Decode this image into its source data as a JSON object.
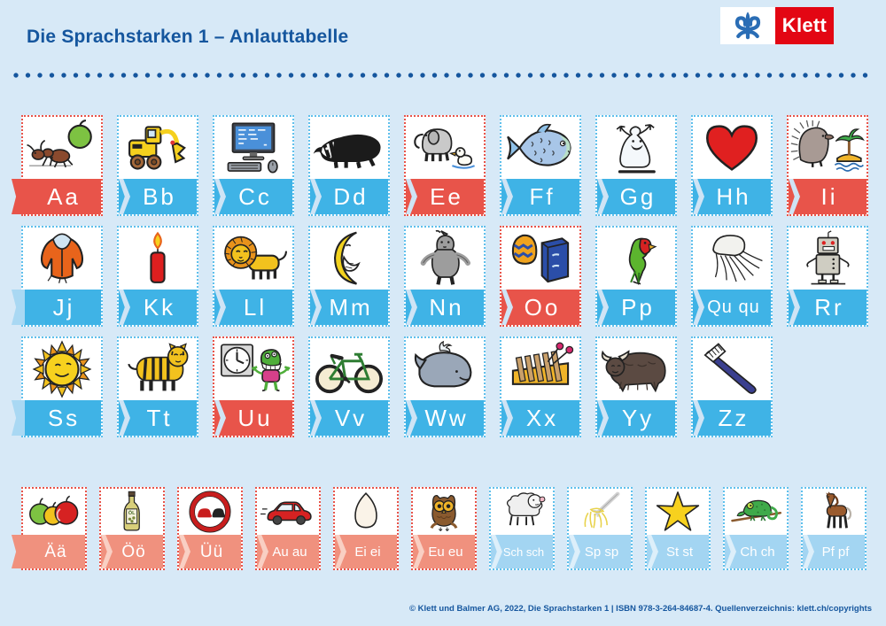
{
  "header": {
    "title": "Die Sprachstarken 1 – Anlauttabelle",
    "logo": {
      "brand": "Klett"
    }
  },
  "colors": {
    "background": "#d7e9f7",
    "title_blue": "#15569e",
    "vowel_red": "#e8544a",
    "consonant_blue": "#3fb3e6",
    "bottom_salmon": "#f0917e",
    "bottom_light_blue": "#a3d5f2"
  },
  "rows": [
    {
      "cells": [
        {
          "label": "Aa",
          "icon": "ant-apple",
          "variant": "red"
        },
        {
          "label": "Bb",
          "icon": "excavator",
          "variant": "blue"
        },
        {
          "label": "Cc",
          "icon": "computer",
          "variant": "blue"
        },
        {
          "label": "Dd",
          "icon": "badger",
          "variant": "blue"
        },
        {
          "label": "Ee",
          "icon": "elephant-duck",
          "variant": "red"
        },
        {
          "label": "Ff",
          "icon": "fish",
          "variant": "blue"
        },
        {
          "label": "Gg",
          "icon": "ghost",
          "variant": "blue"
        },
        {
          "label": "Hh",
          "icon": "heart",
          "variant": "blue"
        },
        {
          "label": "Ii",
          "icon": "hedgehog-island",
          "variant": "red"
        }
      ]
    },
    {
      "cells": [
        {
          "label": "Jj",
          "icon": "jacket",
          "variant": "blue"
        },
        {
          "label": "Kk",
          "icon": "candle",
          "variant": "blue"
        },
        {
          "label": "Ll",
          "icon": "lion",
          "variant": "blue"
        },
        {
          "label": "Mm",
          "icon": "moon",
          "variant": "blue"
        },
        {
          "label": "Nn",
          "icon": "rhino",
          "variant": "blue"
        },
        {
          "label": "Oo",
          "icon": "easter-egg-binder",
          "variant": "red"
        },
        {
          "label": "Pp",
          "icon": "parrot",
          "variant": "blue"
        },
        {
          "label": "Qu qu",
          "icon": "jellyfish",
          "variant": "blue"
        },
        {
          "label": "Rr",
          "icon": "robot",
          "variant": "blue"
        }
      ]
    },
    {
      "cells": [
        {
          "label": "Ss",
          "icon": "sun",
          "variant": "blue"
        },
        {
          "label": "Tt",
          "icon": "tiger",
          "variant": "blue"
        },
        {
          "label": "Uu",
          "icon": "clock-monster",
          "variant": "red"
        },
        {
          "label": "Vv",
          "icon": "bicycle",
          "variant": "blue"
        },
        {
          "label": "Ww",
          "icon": "whale",
          "variant": "blue"
        },
        {
          "label": "Xx",
          "icon": "xylophone",
          "variant": "blue"
        },
        {
          "label": "Yy",
          "icon": "yak",
          "variant": "blue"
        },
        {
          "label": "Zz",
          "icon": "toothbrush",
          "variant": "blue"
        }
      ]
    }
  ],
  "bottom_row": {
    "cells": [
      {
        "label": "Ää",
        "icon": "apples",
        "variant": "salmon"
      },
      {
        "label": "Öö",
        "icon": "oil-bottle",
        "variant": "salmon"
      },
      {
        "label": "Üü",
        "icon": "no-overtaking-sign",
        "variant": "salmon"
      },
      {
        "label": "Au au",
        "icon": "car",
        "variant": "salmon"
      },
      {
        "label": "Ei ei",
        "icon": "egg",
        "variant": "salmon"
      },
      {
        "label": "Eu eu",
        "icon": "owl",
        "variant": "salmon"
      },
      {
        "label": "Sch sch",
        "icon": "sheep",
        "variant": "lightblue"
      },
      {
        "label": "Sp sp",
        "icon": "spaghetti-fork",
        "variant": "lightblue"
      },
      {
        "label": "St st",
        "icon": "star",
        "variant": "lightblue"
      },
      {
        "label": "Ch ch",
        "icon": "chameleon",
        "variant": "lightblue"
      },
      {
        "label": "Pf pf",
        "icon": "horse",
        "variant": "lightblue"
      }
    ]
  },
  "footer": {
    "text": "© Klett und Balmer AG, 2022, Die Sprachstarken 1 | ISBN 978-3-264-84687-4. Quellenverzeichnis: klett.ch/copyrights"
  }
}
